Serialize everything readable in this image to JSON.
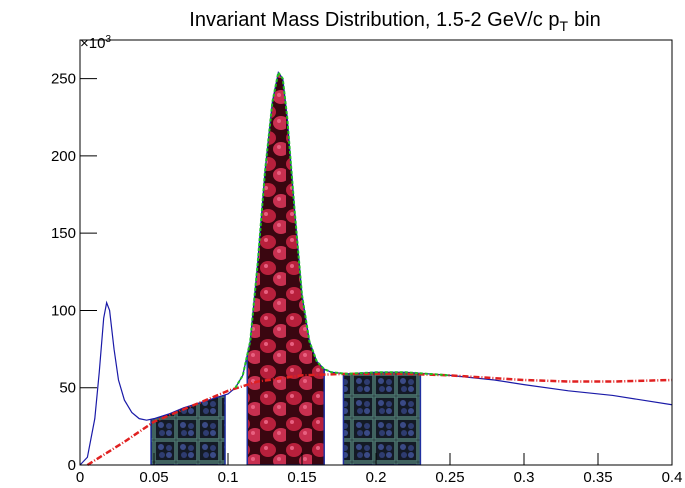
{
  "chart_data": {
    "type": "line",
    "title": "Invariant Mass Distribution, 1.5-2 GeV/c p",
    "title_subscript": "T",
    "title_suffix": "bin",
    "y_multiplier": "×10",
    "y_multiplier_exponent": "3",
    "xlim": [
      0,
      0.4
    ],
    "ylim": [
      0,
      275
    ],
    "xticks": [
      0,
      0.05,
      0.1,
      0.15,
      0.2,
      0.25,
      0.3,
      0.35,
      0.4
    ],
    "yticks": [
      0,
      50,
      100,
      150,
      200,
      250
    ],
    "series": [
      {
        "color": "#1a1aa8",
        "x": [
          0,
          0.005,
          0.01,
          0.013,
          0.016,
          0.018,
          0.02,
          0.023,
          0.026,
          0.03,
          0.035,
          0.04,
          0.045,
          0.05,
          0.06,
          0.07,
          0.08,
          0.09,
          0.1,
          0.105,
          0.11,
          0.115,
          0.12,
          0.125,
          0.13,
          0.134,
          0.137,
          0.14,
          0.145,
          0.15,
          0.155,
          0.16,
          0.165,
          0.17,
          0.18,
          0.2,
          0.22,
          0.25,
          0.28,
          0.3,
          0.33,
          0.36,
          0.4
        ],
        "values": [
          0,
          5,
          30,
          60,
          95,
          105,
          100,
          75,
          55,
          42,
          34,
          30,
          29,
          30,
          33,
          37,
          40,
          43,
          46,
          50,
          58,
          80,
          130,
          190,
          235,
          254,
          250,
          225,
          165,
          110,
          80,
          67,
          62,
          60,
          59,
          60,
          60,
          58,
          55,
          52,
          48,
          45,
          39
        ]
      },
      {
        "color": "#e02020",
        "x": [
          0.005,
          0.03,
          0.05,
          0.08,
          0.1,
          0.12,
          0.15,
          0.18,
          0.22,
          0.25,
          0.3,
          0.33,
          0.36,
          0.4
        ],
        "values": [
          0,
          15,
          28,
          40,
          48,
          54,
          58,
          59,
          59,
          58,
          55,
          54,
          54,
          55
        ]
      },
      {
        "color": "#20c020",
        "x": [
          0.105,
          0.11,
          0.115,
          0.12,
          0.125,
          0.13,
          0.134,
          0.137,
          0.14,
          0.145,
          0.15,
          0.155,
          0.16,
          0.165,
          0.17,
          0.18,
          0.2,
          0.22,
          0.25
        ],
        "values": [
          50,
          58,
          80,
          130,
          190,
          235,
          254,
          250,
          225,
          165,
          110,
          80,
          67,
          62,
          60,
          59,
          60,
          60,
          58
        ]
      }
    ],
    "regions": [
      [
        0.048,
        0.098
      ],
      [
        0.113,
        0.165
      ],
      [
        0.178,
        0.23
      ]
    ]
  }
}
